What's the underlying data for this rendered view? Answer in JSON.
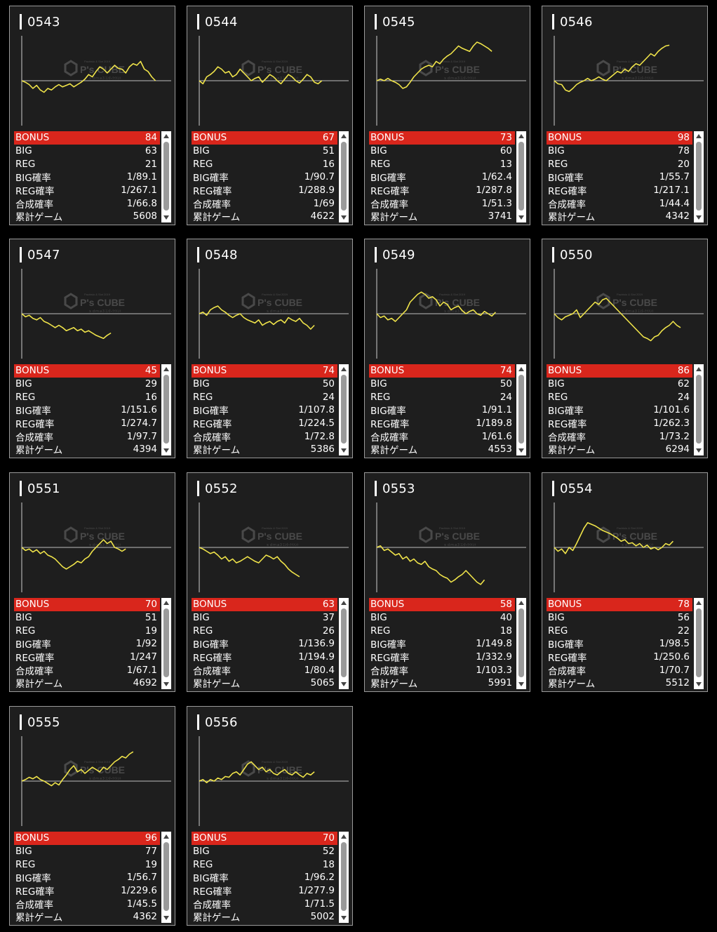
{
  "labels": {
    "bonus": "BONUS",
    "big": "BIG",
    "reg": "REG",
    "big_prob": "BIG確率",
    "reg_prob": "REG確率",
    "total_prob": "合成確率",
    "games": "累計ゲーム"
  },
  "watermark": {
    "brand": "P's CUBE",
    "tagline": "ｓｄｍａ3 ｴﾝﾀｰﾃｲﾒﾝﾄ",
    "top_text": "Pachislo & Slot 2019"
  },
  "colors": {
    "bonus_bg": "#d9261c",
    "graph_line": "#f0e44a",
    "card_bg": "#1e1e1e"
  },
  "machines": [
    {
      "id": "0543",
      "bonus": "84",
      "big": "63",
      "reg": "21",
      "big_prob": "1/89.1",
      "reg_prob": "1/267.1",
      "total_prob": "1/66.8",
      "games": "5608",
      "trend": [
        0,
        -2,
        -5,
        -10,
        -6,
        -12,
        -15,
        -10,
        -12,
        -8,
        -5,
        -8,
        -6,
        -4,
        -8,
        -5,
        -2,
        2,
        8,
        5,
        12,
        18,
        15,
        10,
        15,
        20,
        16,
        15,
        10,
        18,
        22,
        20,
        25,
        15,
        12,
        5,
        0
      ]
    },
    {
      "id": "0544",
      "bonus": "67",
      "big": "51",
      "reg": "16",
      "big_prob": "1/90.7",
      "reg_prob": "1/288.9",
      "total_prob": "1/69",
      "games": "4622",
      "trend": [
        0,
        -4,
        5,
        8,
        12,
        18,
        15,
        10,
        12,
        5,
        8,
        15,
        10,
        5,
        0,
        3,
        5,
        -2,
        3,
        8,
        5,
        0,
        -4,
        2,
        8,
        5,
        0,
        -3,
        2,
        8,
        5,
        -2,
        -4,
        0
      ]
    },
    {
      "id": "0545",
      "bonus": "73",
      "big": "60",
      "reg": "13",
      "big_prob": "1/62.4",
      "reg_prob": "1/287.8",
      "total_prob": "1/51.3",
      "games": "3741",
      "trend": [
        0,
        2,
        0,
        3,
        0,
        -2,
        -5,
        -10,
        -8,
        -2,
        5,
        10,
        15,
        18,
        20,
        18,
        25,
        22,
        28,
        32,
        35,
        40,
        45,
        42,
        40,
        38,
        45,
        50,
        48,
        45,
        42,
        38
      ]
    },
    {
      "id": "0546",
      "bonus": "98",
      "big": "78",
      "reg": "20",
      "big_prob": "1/55.7",
      "reg_prob": "1/217.1",
      "total_prob": "1/44.4",
      "games": "4342",
      "trend": [
        0,
        -4,
        -5,
        -12,
        -14,
        -10,
        -5,
        -2,
        0,
        3,
        0,
        2,
        5,
        2,
        0,
        4,
        8,
        12,
        10,
        15,
        12,
        18,
        22,
        20,
        25,
        30,
        35,
        32,
        38,
        42,
        45,
        46
      ]
    },
    {
      "id": "0547",
      "bonus": "45",
      "big": "29",
      "reg": "16",
      "big_prob": "1/151.6",
      "reg_prob": "1/274.7",
      "total_prob": "1/97.7",
      "games": "4394",
      "trend": [
        0,
        -4,
        -2,
        -6,
        -8,
        -5,
        -10,
        -12,
        -15,
        -18,
        -15,
        -18,
        -22,
        -20,
        -18,
        -22,
        -20,
        -24,
        -22,
        -25,
        -28,
        -30,
        -32,
        -28,
        -25
      ]
    },
    {
      "id": "0548",
      "bonus": "74",
      "big": "50",
      "reg": "24",
      "big_prob": "1/107.8",
      "reg_prob": "1/224.5",
      "total_prob": "1/72.8",
      "games": "5386",
      "trend": [
        0,
        2,
        -2,
        5,
        8,
        10,
        5,
        2,
        -2,
        -5,
        -2,
        0,
        -5,
        -8,
        -10,
        -12,
        -8,
        -15,
        -12,
        -10,
        -14,
        -10,
        -8,
        -12,
        -5,
        -8,
        -10,
        -6,
        -12,
        -15,
        -20,
        -15
      ]
    },
    {
      "id": "0549",
      "bonus": "74",
      "big": "50",
      "reg": "24",
      "big_prob": "1/91.1",
      "reg_prob": "1/189.8",
      "total_prob": "1/61.6",
      "games": "4553",
      "trend": [
        0,
        -5,
        -3,
        -8,
        -6,
        -10,
        -5,
        0,
        5,
        15,
        20,
        25,
        28,
        25,
        20,
        22,
        18,
        10,
        15,
        12,
        5,
        8,
        10,
        4,
        0,
        3,
        5,
        0,
        -2,
        3,
        0,
        -3,
        2
      ]
    },
    {
      "id": "0550",
      "bonus": "86",
      "big": "62",
      "reg": "24",
      "big_prob": "1/101.6",
      "reg_prob": "1/262.3",
      "total_prob": "1/73.2",
      "games": "6294",
      "trend": [
        0,
        -5,
        -8,
        -4,
        -2,
        0,
        5,
        -5,
        0,
        5,
        10,
        15,
        12,
        18,
        20,
        15,
        10,
        5,
        0,
        -5,
        -10,
        -15,
        -20,
        -25,
        -30,
        -32,
        -35,
        -30,
        -28,
        -22,
        -18,
        -15,
        -10,
        -15,
        -18
      ]
    },
    {
      "id": "0551",
      "bonus": "70",
      "big": "51",
      "reg": "19",
      "big_prob": "1/92",
      "reg_prob": "1/247",
      "total_prob": "1/67.1",
      "games": "4692",
      "trend": [
        0,
        -4,
        -2,
        -6,
        -3,
        -8,
        -5,
        -10,
        -12,
        -15,
        -20,
        -25,
        -28,
        -25,
        -22,
        -18,
        -20,
        -15,
        -12,
        -5,
        0,
        5,
        10,
        5,
        8,
        0,
        -2,
        -5,
        -2
      ]
    },
    {
      "id": "0552",
      "bonus": "63",
      "big": "37",
      "reg": "26",
      "big_prob": "1/136.9",
      "reg_prob": "1/194.9",
      "total_prob": "1/80.4",
      "games": "5065",
      "trend": [
        0,
        -2,
        -5,
        -8,
        -6,
        -10,
        -15,
        -12,
        -18,
        -15,
        -20,
        -18,
        -15,
        -12,
        -15,
        -18,
        -20,
        -15,
        -10,
        -12,
        -15,
        -12,
        -18,
        -22,
        -28,
        -32,
        -35,
        -38
      ]
    },
    {
      "id": "0553",
      "bonus": "58",
      "big": "40",
      "reg": "18",
      "big_prob": "1/149.8",
      "reg_prob": "1/332.9",
      "total_prob": "1/103.3",
      "games": "5991",
      "trend": [
        0,
        2,
        -4,
        -2,
        -6,
        -10,
        -8,
        -15,
        -12,
        -18,
        -15,
        -20,
        -22,
        -18,
        -25,
        -28,
        -30,
        -35,
        -38,
        -40,
        -45,
        -42,
        -38,
        -35,
        -30,
        -35,
        -40,
        -45,
        -48,
        -42
      ]
    },
    {
      "id": "0554",
      "bonus": "78",
      "big": "56",
      "reg": "22",
      "big_prob": "1/98.5",
      "reg_prob": "1/250.6",
      "total_prob": "1/70.7",
      "games": "5512",
      "trend": [
        0,
        -5,
        -2,
        -8,
        0,
        -4,
        5,
        15,
        25,
        32,
        30,
        28,
        25,
        22,
        20,
        18,
        15,
        12,
        8,
        10,
        5,
        6,
        2,
        5,
        0,
        3,
        -2,
        0,
        -3,
        0,
        5,
        3,
        8
      ]
    },
    {
      "id": "0555",
      "bonus": "96",
      "big": "77",
      "reg": "19",
      "big_prob": "1/56.7",
      "reg_prob": "1/229.6",
      "total_prob": "1/45.5",
      "games": "4362",
      "trend": [
        0,
        2,
        5,
        3,
        6,
        2,
        0,
        -3,
        -6,
        -2,
        -5,
        2,
        8,
        15,
        20,
        12,
        15,
        10,
        14,
        18,
        15,
        12,
        18,
        15,
        20,
        25,
        28,
        32,
        30,
        35,
        38
      ]
    },
    {
      "id": "0556",
      "bonus": "70",
      "big": "52",
      "reg": "18",
      "big_prob": "1/96.2",
      "reg_prob": "1/277.9",
      "total_prob": "1/71.5",
      "games": "5002",
      "trend": [
        0,
        2,
        -2,
        2,
        0,
        4,
        2,
        6,
        5,
        10,
        12,
        8,
        15,
        22,
        25,
        20,
        15,
        18,
        12,
        15,
        10,
        8,
        12,
        15,
        10,
        8,
        12,
        8,
        5,
        10,
        8,
        12
      ]
    }
  ]
}
